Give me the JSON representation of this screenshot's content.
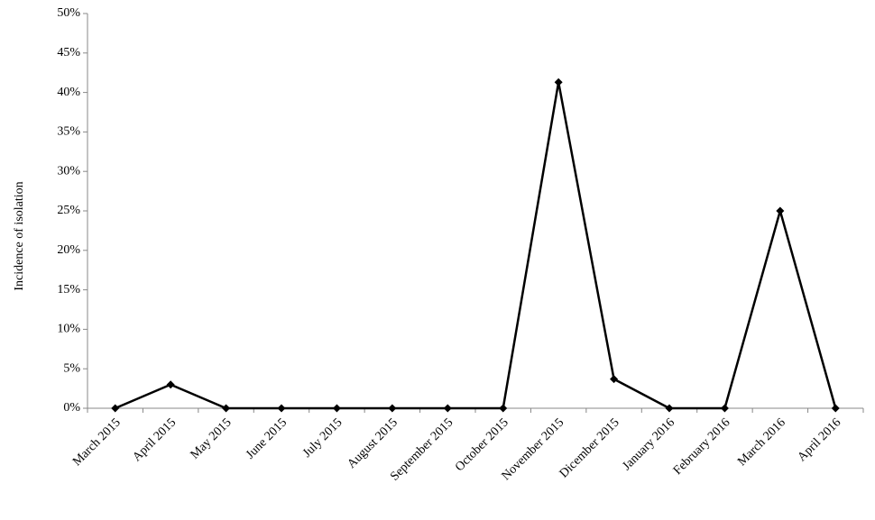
{
  "chart_data": {
    "type": "line",
    "y_label": "Incidence of isolation",
    "categories": [
      "March 2015",
      "April 2015",
      "May 2015",
      "June 2015",
      "July 2015",
      "August 2015",
      "September 2015",
      "October 2015",
      "November 2015",
      "Dicember 2015",
      "January 2016",
      "February 2016",
      "March 2016",
      "April 2016"
    ],
    "values": [
      0,
      3,
      0,
      0,
      0,
      0,
      0,
      0,
      41.3,
      3.7,
      0,
      0,
      25,
      0
    ],
    "color": "#000000",
    "ylim": [
      0,
      50
    ],
    "yticks": [
      {
        "value": 0,
        "label": "0%"
      },
      {
        "value": 5,
        "label": "5%"
      },
      {
        "value": 10,
        "label": "10%"
      },
      {
        "value": 15,
        "label": "15%"
      },
      {
        "value": 20,
        "label": "20%"
      },
      {
        "value": 25,
        "label": "25%"
      },
      {
        "value": 30,
        "label": "30%"
      },
      {
        "value": 35,
        "label": "35%"
      },
      {
        "value": 40,
        "label": "40%"
      },
      {
        "value": 45,
        "label": "45%"
      },
      {
        "value": 50,
        "label": "50%"
      }
    ],
    "grid": false
  }
}
